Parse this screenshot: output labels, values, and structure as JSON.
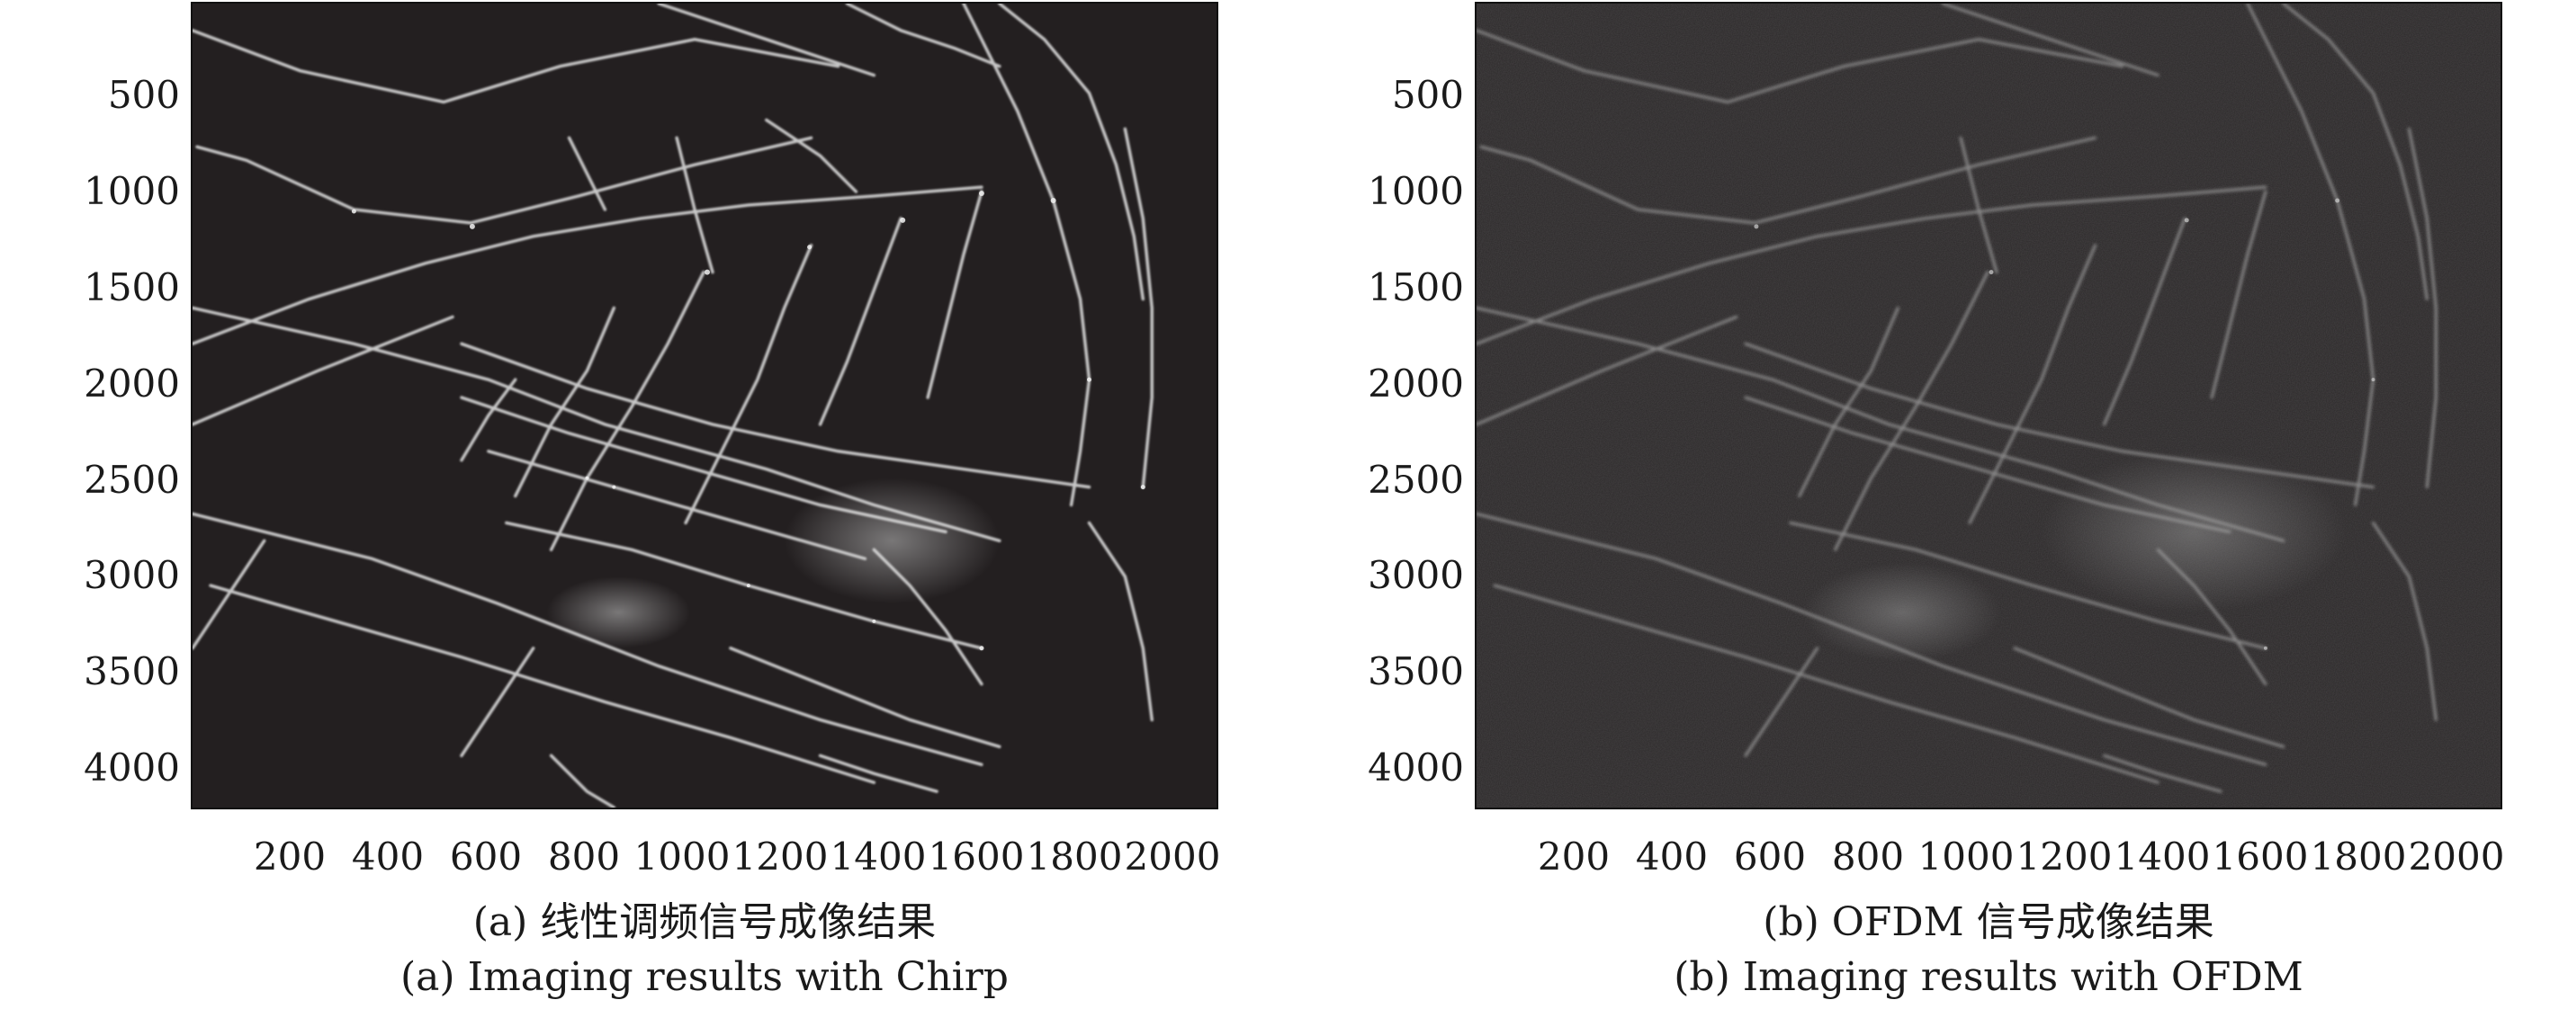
{
  "panels": [
    {
      "id": "a",
      "y_ticks": [
        "500",
        "1000",
        "1500",
        "2000",
        "2500",
        "3000",
        "3500",
        "4000"
      ],
      "x_ticks": [
        "200",
        "400",
        "600",
        "800",
        "1000",
        "1200",
        "1400",
        "1600",
        "1800",
        "2000"
      ],
      "caption_zh": "(a) 线性调频信号成像结果",
      "caption_en": "(a) Imaging results with Chirp",
      "background_color": "#231f20",
      "stroke_color": "#d9d9d9"
    },
    {
      "id": "b",
      "y_ticks": [
        "500",
        "1000",
        "1500",
        "2000",
        "2500",
        "3000",
        "3500",
        "4000"
      ],
      "x_ticks": [
        "200",
        "400",
        "600",
        "800",
        "1000",
        "1200",
        "1400",
        "1600",
        "1800",
        "2000"
      ],
      "caption_zh": "(b) OFDM 信号成像结果",
      "caption_en": "(b) Imaging results with OFDM",
      "background_color": "#2b2829",
      "stroke_color": "#a8a8a8"
    }
  ]
}
